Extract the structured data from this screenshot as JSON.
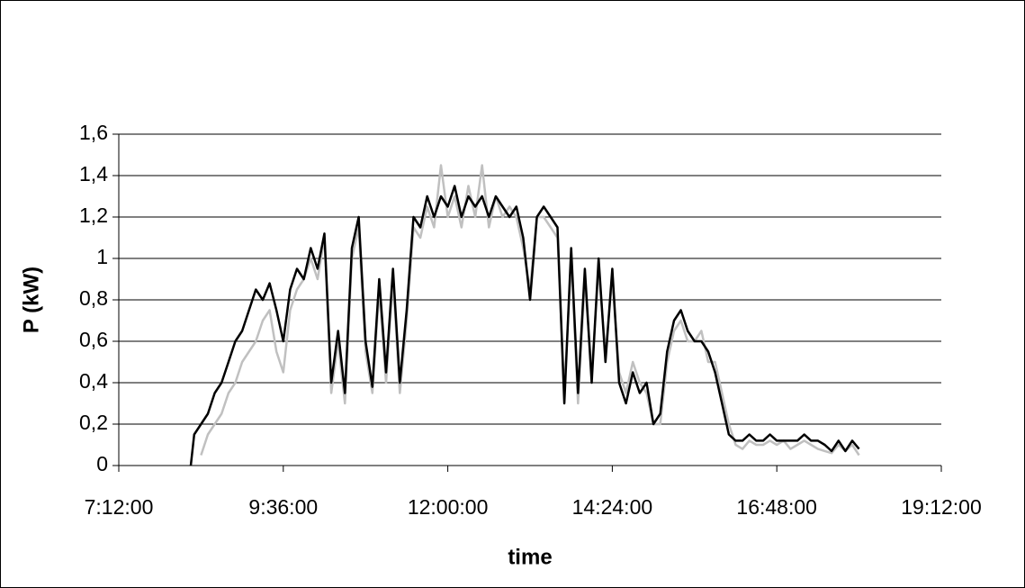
{
  "chart_data": {
    "type": "line",
    "xlabel": "time",
    "ylabel": "P (kW)",
    "x": [
      8.25,
      8.3,
      8.4,
      8.5,
      8.6,
      8.7,
      8.8,
      8.9,
      9.0,
      9.1,
      9.2,
      9.3,
      9.4,
      9.5,
      9.6,
      9.7,
      9.8,
      9.9,
      10.0,
      10.1,
      10.2,
      10.3,
      10.4,
      10.5,
      10.6,
      10.7,
      10.8,
      10.9,
      11.0,
      11.1,
      11.2,
      11.3,
      11.4,
      11.5,
      11.6,
      11.7,
      11.8,
      11.9,
      12.0,
      12.1,
      12.2,
      12.3,
      12.4,
      12.5,
      12.6,
      12.7,
      12.8,
      12.9,
      13.0,
      13.1,
      13.2,
      13.3,
      13.4,
      13.5,
      13.6,
      13.7,
      13.8,
      13.9,
      14.0,
      14.1,
      14.2,
      14.3,
      14.4,
      14.5,
      14.6,
      14.7,
      14.8,
      14.9,
      15.0,
      15.1,
      15.2,
      15.3,
      15.4,
      15.5,
      15.6,
      15.7,
      15.8,
      15.9,
      16.0,
      16.1,
      16.2,
      16.3,
      16.4,
      16.5,
      16.6,
      16.7,
      16.8,
      16.9,
      17.0,
      17.1,
      17.2,
      17.3,
      17.4,
      17.5,
      17.6,
      17.7,
      17.8,
      17.9,
      18.0
    ],
    "series": [
      {
        "color": "#c0c0c0",
        "values": [
          null,
          null,
          0.05,
          0.15,
          0.2,
          0.25,
          0.35,
          0.4,
          0.5,
          0.55,
          0.6,
          0.7,
          0.75,
          0.55,
          0.45,
          0.75,
          0.85,
          0.9,
          1.0,
          0.9,
          1.1,
          0.35,
          0.6,
          0.3,
          1.0,
          1.15,
          0.55,
          0.35,
          0.85,
          0.4,
          0.9,
          0.35,
          0.7,
          1.15,
          1.1,
          1.25,
          1.15,
          1.45,
          1.2,
          1.3,
          1.15,
          1.35,
          1.2,
          1.45,
          1.15,
          1.3,
          1.2,
          1.25,
          1.2,
          1.05,
          0.85,
          1.2,
          1.2,
          1.15,
          1.1,
          0.35,
          1.0,
          0.3,
          0.9,
          0.45,
          0.95,
          0.55,
          0.9,
          0.45,
          0.35,
          0.5,
          0.4,
          0.35,
          0.2,
          0.2,
          0.5,
          0.65,
          0.7,
          0.6,
          0.6,
          0.65,
          0.5,
          0.5,
          0.35,
          0.2,
          0.1,
          0.08,
          0.12,
          0.1,
          0.1,
          0.12,
          0.1,
          0.12,
          0.08,
          0.1,
          0.12,
          0.1,
          0.08,
          0.07,
          0.06,
          0.1,
          0.07,
          0.1,
          0.05
        ]
      },
      {
        "color": "#000000",
        "values": [
          0,
          0.15,
          0.2,
          0.25,
          0.35,
          0.4,
          0.5,
          0.6,
          0.65,
          0.75,
          0.85,
          0.8,
          0.88,
          0.75,
          0.6,
          0.85,
          0.95,
          0.9,
          1.05,
          0.95,
          1.12,
          0.4,
          0.65,
          0.35,
          1.05,
          1.2,
          0.6,
          0.38,
          0.9,
          0.45,
          0.95,
          0.4,
          0.75,
          1.2,
          1.15,
          1.3,
          1.2,
          1.3,
          1.25,
          1.35,
          1.2,
          1.3,
          1.25,
          1.3,
          1.2,
          1.3,
          1.25,
          1.2,
          1.25,
          1.1,
          0.8,
          1.2,
          1.25,
          1.2,
          1.15,
          0.3,
          1.05,
          0.35,
          0.95,
          0.4,
          1.0,
          0.5,
          0.95,
          0.4,
          0.3,
          0.45,
          0.35,
          0.4,
          0.2,
          0.25,
          0.55,
          0.7,
          0.75,
          0.65,
          0.6,
          0.6,
          0.55,
          0.45,
          0.3,
          0.15,
          0.12,
          0.12,
          0.15,
          0.12,
          0.12,
          0.15,
          0.12,
          0.12,
          0.12,
          0.12,
          0.15,
          0.12,
          0.12,
          0.1,
          0.07,
          0.12,
          0.07,
          0.12,
          0.08
        ]
      }
    ],
    "xlim": [
      7.2,
      19.2
    ],
    "xticks": [
      {
        "value": 7.2,
        "label": "7:12:00"
      },
      {
        "value": 9.6,
        "label": "9:36:00"
      },
      {
        "value": 12,
        "label": "12:00:00"
      },
      {
        "value": 14.4,
        "label": "14:24:00"
      },
      {
        "value": 16.8,
        "label": "16:48:00"
      },
      {
        "value": 19.2,
        "label": "19:12:00"
      }
    ],
    "ylim": [
      0,
      1.6
    ],
    "yticks": [
      0,
      {
        "value": 0.2,
        "label": "0,2"
      },
      {
        "value": 0.4,
        "label": "0,4"
      },
      {
        "value": 0.6,
        "label": "0,6"
      },
      {
        "value": 0.8,
        "label": "0,8"
      },
      1,
      {
        "value": 1.2,
        "label": "1,2"
      },
      {
        "value": 1.4,
        "label": "1,4"
      },
      {
        "value": 1.6,
        "label": "1,6"
      }
    ],
    "grid": true
  }
}
